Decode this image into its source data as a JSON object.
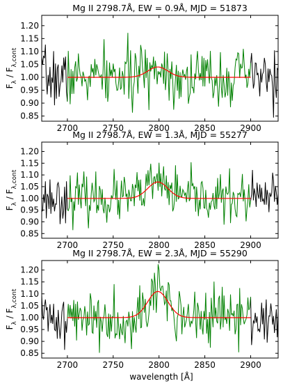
{
  "figure": {
    "xlabel": "wavelength [Å]"
  },
  "chart_data": [
    {
      "type": "line",
      "title": "Mg II 2798.7Å, EW = 0.9Å, MJD = 51873",
      "ylabel": "F_λ / F_λ,cont",
      "xlim": [
        2672,
        2930
      ],
      "ylim": [
        0.83,
        1.24
      ],
      "xticks": [
        2700,
        2750,
        2800,
        2850,
        2900
      ],
      "yticks": [
        0.85,
        0.9,
        0.95,
        1.0,
        1.05,
        1.1,
        1.15,
        1.2
      ],
      "xtick_labels": [
        "2700",
        "2750",
        "2800",
        "2850",
        "2900"
      ],
      "ytick_labels": [
        "0.85",
        "0.90",
        "0.95",
        "1.00",
        "1.05",
        "1.10",
        "1.15",
        "1.20"
      ],
      "fit": {
        "center": 2798.7,
        "amplitude": 0.04,
        "sigma": 11,
        "baseline": 1.0,
        "range": [
          2700,
          2900
        ],
        "color": "#ff0000"
      },
      "spectrum": {
        "noise_sigma": 0.055,
        "fit_range": [
          2700,
          2900
        ],
        "inside_color": "#008000",
        "outside_color": "#000000",
        "seed": 7
      }
    },
    {
      "type": "line",
      "title": "Mg II 2798.7Å, EW = 1.3Å, MJD = 55277",
      "ylabel": "F_λ / F_λ,cont",
      "xlim": [
        2672,
        2930
      ],
      "ylim": [
        0.83,
        1.24
      ],
      "xticks": [
        2700,
        2750,
        2800,
        2850,
        2900
      ],
      "yticks": [
        0.85,
        0.9,
        0.95,
        1.0,
        1.05,
        1.1,
        1.15,
        1.2
      ],
      "xtick_labels": [
        "2700",
        "2750",
        "2800",
        "2850",
        "2900"
      ],
      "ytick_labels": [
        "0.85",
        "0.90",
        "0.95",
        "1.00",
        "1.05",
        "1.10",
        "1.15",
        "1.20"
      ],
      "fit": {
        "center": 2798.7,
        "amplitude": 0.07,
        "sigma": 11,
        "baseline": 1.0,
        "range": [
          2700,
          2900
        ],
        "color": "#ff0000"
      },
      "spectrum": {
        "noise_sigma": 0.05,
        "fit_range": [
          2700,
          2900
        ],
        "inside_color": "#008000",
        "outside_color": "#000000",
        "seed": 23
      }
    },
    {
      "type": "line",
      "title": "Mg II 2798.7Å, EW = 2.3Å, MJD = 55290",
      "ylabel": "F_λ / F_λ,cont",
      "xlim": [
        2672,
        2930
      ],
      "ylim": [
        0.83,
        1.24
      ],
      "xticks": [
        2700,
        2750,
        2800,
        2850,
        2900
      ],
      "yticks": [
        0.85,
        0.9,
        0.95,
        1.0,
        1.05,
        1.1,
        1.15,
        1.2
      ],
      "xtick_labels": [
        "2700",
        "2750",
        "2800",
        "2850",
        "2900"
      ],
      "ytick_labels": [
        "0.85",
        "0.90",
        "0.95",
        "1.00",
        "1.05",
        "1.10",
        "1.15",
        "1.20"
      ],
      "fit": {
        "center": 2798.7,
        "amplitude": 0.11,
        "sigma": 11,
        "baseline": 1.0,
        "range": [
          2700,
          2900
        ],
        "color": "#ff0000"
      },
      "spectrum": {
        "noise_sigma": 0.058,
        "fit_range": [
          2700,
          2900
        ],
        "inside_color": "#008000",
        "outside_color": "#000000",
        "seed": 41
      }
    }
  ]
}
